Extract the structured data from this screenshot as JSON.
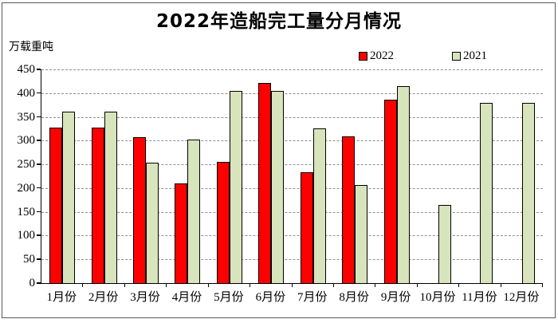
{
  "chart_data": {
    "type": "bar",
    "title": "2022年造船完工量分月情况",
    "unit_label": "万载重吨",
    "categories": [
      "1月份",
      "2月份",
      "3月份",
      "4月份",
      "5月份",
      "6月份",
      "7月份",
      "8月份",
      "9月份",
      "10月份",
      "11月份",
      "12月份"
    ],
    "series": [
      {
        "name": "2022",
        "color": "#ff0000",
        "values": [
          327,
          327,
          308,
          210,
          255,
          422,
          234,
          309,
          387,
          null,
          null,
          null
        ]
      },
      {
        "name": "2021",
        "color": "#d8e4bc",
        "values": [
          361,
          361,
          254,
          302,
          405,
          405,
          326,
          207,
          415,
          165,
          380,
          380
        ]
      }
    ],
    "ylim": [
      0,
      450
    ],
    "ytick_step": 50,
    "yticks": [
      "450",
      "400",
      "350",
      "300",
      "250",
      "200",
      "150",
      "100",
      "50",
      "0"
    ],
    "grid": "horizontal-dashed",
    "legend_position": "top-right",
    "axis_color": "#000000",
    "gridline_color": "#8f8f8f",
    "frame_color": "#5a5a5a"
  }
}
